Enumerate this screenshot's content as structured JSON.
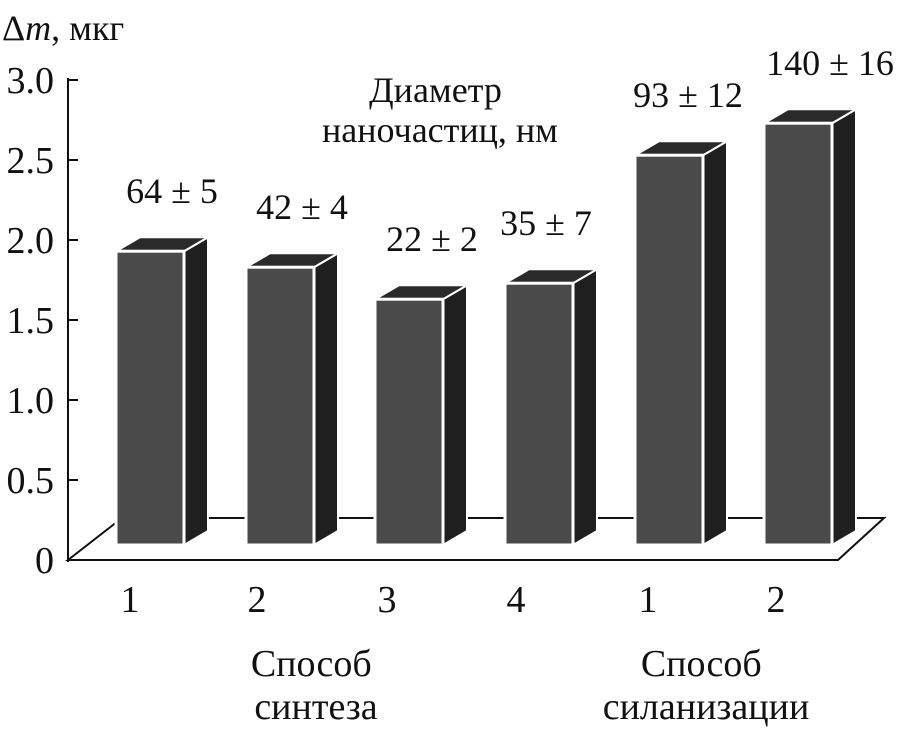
{
  "chart_data": {
    "type": "bar",
    "title": "",
    "ylabel_symbol": "Δ",
    "ylabel_var": "m",
    "ylabel_unit": ", мкг",
    "xlabel": "",
    "ylim": [
      0,
      3.0
    ],
    "yticks": [
      "0",
      "0.5",
      "1.0",
      "1.5",
      "2.0",
      "2.5",
      "3.0"
    ],
    "categories": [
      "1",
      "2",
      "3",
      "4",
      "1",
      "2"
    ],
    "values": [
      1.93,
      1.83,
      1.63,
      1.73,
      2.53,
      2.73
    ],
    "bar_labels": [
      "64 ± 5",
      "42 ± 4",
      "22 ± 2",
      "35 ± 7",
      "93 ± 12",
      "140 ± 16"
    ],
    "annotation_lines": [
      "Диаметр",
      "наночастиц, нм"
    ],
    "groups": [
      {
        "lines": [
          "Способ",
          "синтеза"
        ]
      },
      {
        "lines": [
          "Способ",
          "силанизации"
        ]
      }
    ],
    "colors": {
      "bar_face": "#4a4a4a",
      "bar_side": "#1f1f1f",
      "bar_top": "#2a2a2a",
      "bar_edge": "#ffffff",
      "axis": "#111111",
      "text": "#111111"
    }
  }
}
